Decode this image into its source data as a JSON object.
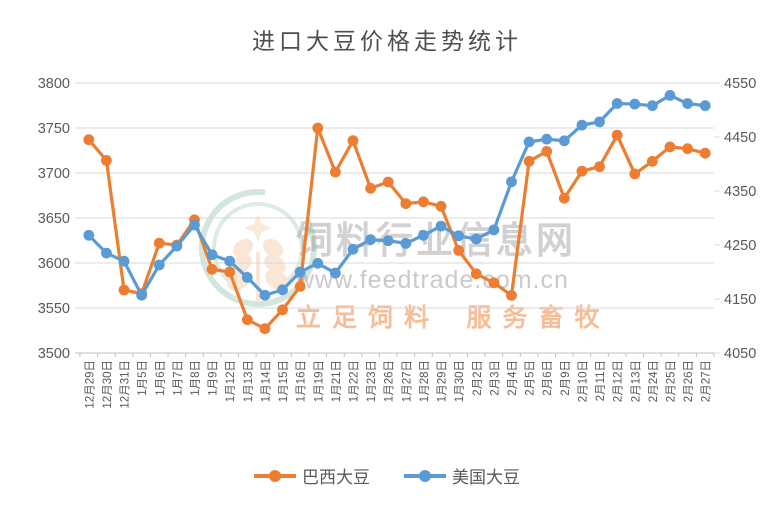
{
  "title": "进口大豆价格走势统计",
  "legend": {
    "items": [
      {
        "label": "巴西大豆",
        "color": "#ED7D31"
      },
      {
        "label": "美国大豆",
        "color": "#5B9BD5"
      }
    ]
  },
  "watermark": {
    "site_name": "饲料行业信息网",
    "url": "www.feedtrade.com.cn",
    "slogan_left": "立足饲料",
    "slogan_right": "服务畜牧"
  },
  "colors": {
    "brazil_orange": "#ED7D31",
    "us_blue": "#5B9BD5",
    "gridline": "#D9D9D9",
    "axis_line": "#BFBFBF",
    "tick_text": "#595959"
  },
  "chart_data": {
    "type": "line",
    "title": "进口大豆价格走势统计",
    "categories": [
      "12月29日",
      "12月30日",
      "12月31日",
      "1月5日",
      "1月6日",
      "1月7日",
      "1月8日",
      "1月9日",
      "1月12日",
      "1月13日",
      "1月14日",
      "1月15日",
      "1月16日",
      "1月19日",
      "1月21日",
      "1月22日",
      "1月23日",
      "1月26日",
      "1月27日",
      "1月28日",
      "1月29日",
      "1月30日",
      "2月2日",
      "2月3日",
      "2月4日",
      "2月5日",
      "2月6日",
      "2月9日",
      "2月10日",
      "2月11日",
      "2月12日",
      "2月13日",
      "2月24日",
      "2月25日",
      "2月26日",
      "2月27日"
    ],
    "series": [
      {
        "name": "巴西大豆",
        "axis": "left",
        "color": "#ED7D31",
        "values": [
          3737,
          3714,
          3570,
          3566,
          3622,
          3620,
          3648,
          3593,
          3590,
          3537,
          3527,
          3548,
          3574,
          3750,
          3701,
          3736,
          3683,
          3690,
          3666,
          3668,
          3663,
          3614,
          3588,
          3578,
          3564,
          3713,
          3724,
          3672,
          3702,
          3707,
          3742,
          3699,
          3713,
          3729,
          3727,
          3722
        ]
      },
      {
        "name": "美国大豆",
        "axis": "right",
        "color": "#5B9BD5",
        "values": [
          4268,
          4235,
          4220,
          4157,
          4213,
          4248,
          4287,
          4232,
          4220,
          4190,
          4157,
          4167,
          4200,
          4216,
          4198,
          4242,
          4260,
          4258,
          4253,
          4268,
          4285,
          4267,
          4261,
          4278,
          4367,
          4441,
          4446,
          4443,
          4472,
          4478,
          4512,
          4511,
          4508,
          4527,
          4512,
          4508
        ]
      }
    ],
    "left_axis": {
      "min": 3500,
      "max": 3800,
      "ticks": [
        3500,
        3550,
        3600,
        3650,
        3700,
        3750,
        3800
      ]
    },
    "right_axis": {
      "min": 4050,
      "max": 4550,
      "ticks": [
        4050,
        4150,
        4250,
        4350,
        4450,
        4550
      ]
    },
    "grid": true,
    "legend_position": "bottom",
    "x_label_rotation": -90
  }
}
